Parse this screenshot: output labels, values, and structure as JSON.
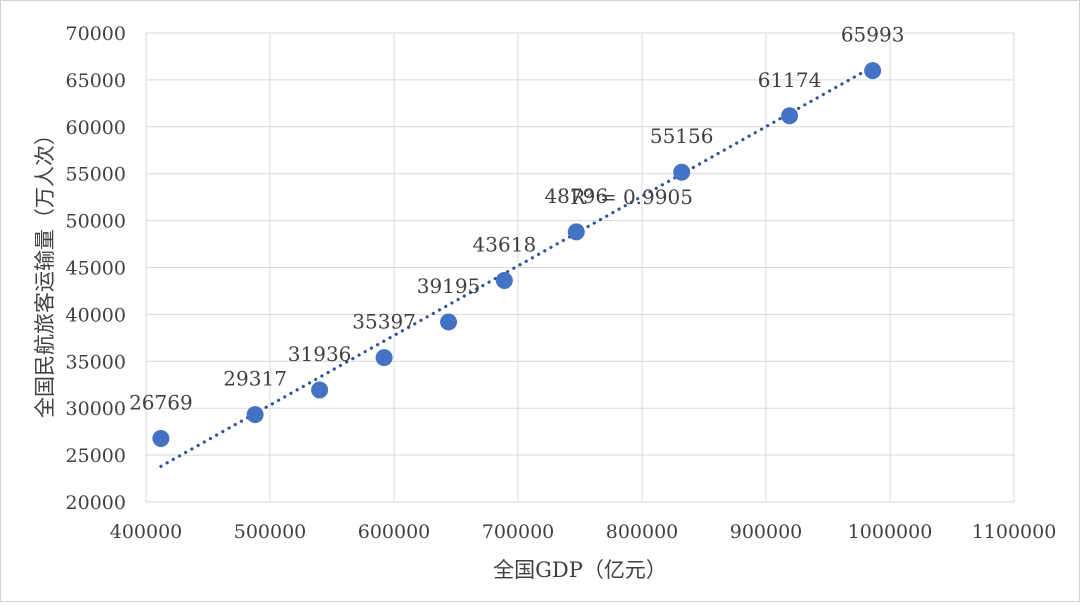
{
  "chart_data": {
    "type": "scatter",
    "title": "",
    "xlabel": "全国GDP（亿元）",
    "ylabel": "全国民航旅客运输量（万人次）",
    "xlim": [
      400000,
      1100000
    ],
    "ylim": [
      20000,
      70000
    ],
    "x_ticks": [
      400000,
      500000,
      600000,
      700000,
      800000,
      900000,
      1000000,
      1100000
    ],
    "y_ticks": [
      20000,
      25000,
      30000,
      35000,
      40000,
      45000,
      50000,
      55000,
      60000,
      65000,
      70000
    ],
    "x_tick_labels": [
      "400000",
      "500000",
      "600000",
      "700000",
      "800000",
      "900000",
      "1000000",
      "1100000"
    ],
    "y_tick_labels": [
      "20000",
      "25000",
      "30000",
      "35000",
      "40000",
      "45000",
      "50000",
      "55000",
      "60000",
      "65000",
      "70000"
    ],
    "grid": true,
    "marker_color": "#4472c4",
    "trendline_color": "#2f5597",
    "series": [
      {
        "x": [
          412000,
          488000,
          540000,
          592000,
          644000,
          689000,
          747000,
          832000,
          919000,
          986000
        ],
        "y": [
          26769,
          29317,
          31936,
          35397,
          39195,
          43618,
          48796,
          55156,
          61174,
          65993
        ],
        "labels": [
          "26769",
          "29317",
          "31936",
          "35397",
          "39195",
          "43618",
          "48796",
          "55156",
          "61174",
          "65993"
        ]
      }
    ],
    "trendline": {
      "type": "linear",
      "x_start": 412000,
      "y_start": 23800,
      "x_end": 986000,
      "y_end": 66400
    },
    "annotation": {
      "text": "R² = 0.9905",
      "x": 860000,
      "y": 52500
    }
  }
}
